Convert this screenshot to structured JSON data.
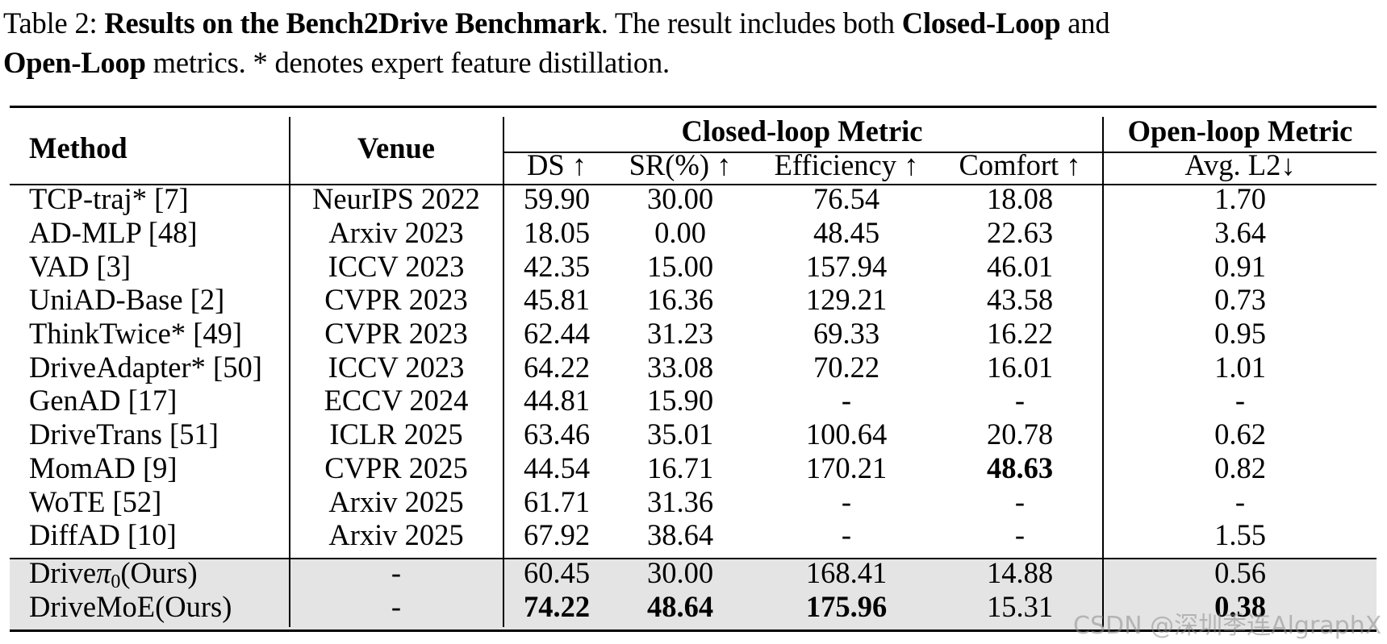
{
  "caption": {
    "prefix": "Table 2: ",
    "title_bold": "Results on the Bench2Drive Benchmark",
    "mid1": ". The result includes both ",
    "closed_bold": "Closed-Loop",
    "and": " and",
    "open_bold": "Open-Loop",
    "rest": " metrics. * denotes expert feature distillation."
  },
  "header": {
    "method": "Method",
    "venue": "Venue",
    "closed_group": "Closed-loop Metric",
    "open_group": "Open-loop Metric",
    "cols": [
      "DS ↑",
      "SR(%) ↑",
      "Efficiency ↑",
      "Comfort ↑",
      "Avg. L2↓"
    ]
  },
  "rows": [
    {
      "method": "TCP-traj* [7]",
      "venue": "NeurIPS 2022",
      "ds": "59.90",
      "sr": "30.00",
      "eff": "76.54",
      "comf": "18.08",
      "l2": "1.70"
    },
    {
      "method": "AD-MLP [48]",
      "venue": "Arxiv 2023",
      "ds": "18.05",
      "sr": "0.00",
      "eff": "48.45",
      "comf": "22.63",
      "l2": "3.64"
    },
    {
      "method": "VAD [3]",
      "venue": "ICCV 2023",
      "ds": "42.35",
      "sr": "15.00",
      "eff": "157.94",
      "comf": "46.01",
      "l2": "0.91"
    },
    {
      "method": "UniAD-Base [2]",
      "venue": "CVPR 2023",
      "ds": "45.81",
      "sr": "16.36",
      "eff": "129.21",
      "comf": "43.58",
      "l2": "0.73"
    },
    {
      "method": "ThinkTwice* [49]",
      "venue": "CVPR 2023",
      "ds": "62.44",
      "sr": "31.23",
      "eff": "69.33",
      "comf": "16.22",
      "l2": "0.95"
    },
    {
      "method": "DriveAdapter* [50]",
      "venue": "ICCV 2023",
      "ds": "64.22",
      "sr": "33.08",
      "eff": "70.22",
      "comf": "16.01",
      "l2": "1.01"
    },
    {
      "method": "GenAD [17]",
      "venue": "ECCV 2024",
      "ds": "44.81",
      "sr": "15.90",
      "eff": "-",
      "comf": "-",
      "l2": "-"
    },
    {
      "method": "DriveTrans [51]",
      "venue": "ICLR 2025",
      "ds": "63.46",
      "sr": "35.01",
      "eff": "100.64",
      "comf": "20.78",
      "l2": "0.62"
    },
    {
      "method": "MomAD [9]",
      "venue": "CVPR 2025",
      "ds": "44.54",
      "sr": "16.71",
      "eff": "170.21",
      "comf": "48.63",
      "l2": "0.82"
    },
    {
      "method": "WoTE [52]",
      "venue": "Arxiv 2025",
      "ds": "61.71",
      "sr": "31.36",
      "eff": "-",
      "comf": "-",
      "l2": "-"
    },
    {
      "method": "DiffAD [10]",
      "venue": "Arxiv 2025",
      "ds": "67.92",
      "sr": "38.64",
      "eff": "-",
      "comf": "-",
      "l2": "1.55"
    },
    {
      "method_a": "Drive",
      "method_pi": "π",
      "method_sub": "0",
      "method_b": "(Ours)",
      "venue": "-",
      "ds": "60.45",
      "sr": "30.00",
      "eff": "168.41",
      "comf": "14.88",
      "l2": "0.56"
    },
    {
      "method": "DriveMoE(Ours)",
      "venue": "-",
      "ds": "74.22",
      "sr": "48.64",
      "eff": "175.96",
      "comf": "15.31",
      "l2": "0.38"
    }
  ],
  "watermark": "CSDN @深圳季连AlgraphX"
}
